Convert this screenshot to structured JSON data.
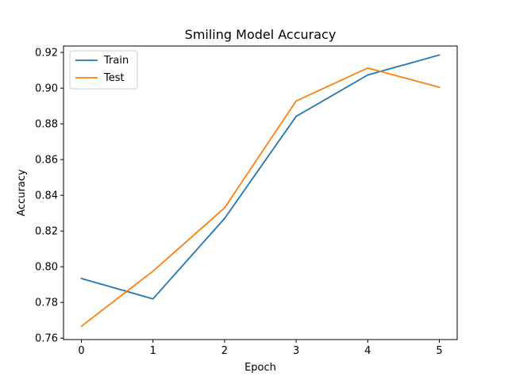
{
  "chart_data": {
    "type": "line",
    "title": "Smiling Model Accuracy",
    "xlabel": "Epoch",
    "ylabel": "Accuracy",
    "x": [
      0,
      1,
      2,
      3,
      4,
      5
    ],
    "xticks": [
      "0",
      "1",
      "2",
      "3",
      "4",
      "5"
    ],
    "xlim": [
      -0.25,
      5.25
    ],
    "yticks": [
      "0.76",
      "0.78",
      "0.80",
      "0.82",
      "0.84",
      "0.86",
      "0.88",
      "0.90",
      "0.92"
    ],
    "ylim": [
      0.7592,
      0.9236
    ],
    "grid": false,
    "legend_position": "upper-left",
    "series": [
      {
        "name": "Train",
        "color": "#1f77b4",
        "values": [
          0.7934,
          0.782,
          0.827,
          0.8842,
          0.9074,
          0.9186
        ]
      },
      {
        "name": "Test",
        "color": "#ff7f0e",
        "values": [
          0.7666,
          0.7975,
          0.8329,
          0.8928,
          0.9113,
          0.9005
        ]
      }
    ]
  }
}
